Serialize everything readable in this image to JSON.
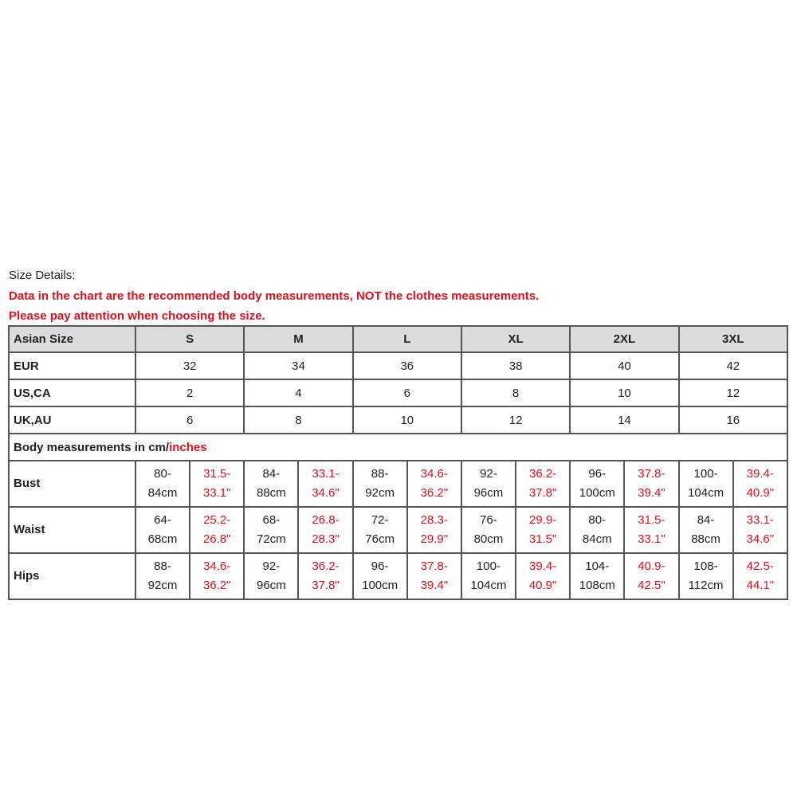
{
  "intro": {
    "title": "Size Details:",
    "warning_1": "Data in the chart are the recommended body measurements, NOT the clothes measurements.",
    "warning_2": "Please pay attention when choosing the size."
  },
  "table": {
    "header_label": "Asian Size",
    "sizes": [
      "S",
      "M",
      "L",
      "XL",
      "2XL",
      "3XL"
    ],
    "conversion_rows": [
      {
        "label": "EUR",
        "values": [
          "32",
          "34",
          "36",
          "38",
          "40",
          "42"
        ]
      },
      {
        "label": "US,CA",
        "values": [
          "2",
          "4",
          "6",
          "8",
          "10",
          "12"
        ]
      },
      {
        "label": "UK,AU",
        "values": [
          "6",
          "8",
          "10",
          "12",
          "14",
          "16"
        ]
      }
    ],
    "section_label_prefix": "Body measurements in cm/",
    "section_label_suffix": "inches",
    "measurement_rows": [
      {
        "label": "Bust",
        "values": [
          {
            "cm_1": "80-",
            "cm_2": "84cm",
            "in_1": "31.5-",
            "in_2": "33.1\""
          },
          {
            "cm_1": "84-",
            "cm_2": "88cm",
            "in_1": "33.1-",
            "in_2": "34.6\""
          },
          {
            "cm_1": "88-",
            "cm_2": "92cm",
            "in_1": "34.6-",
            "in_2": "36.2\""
          },
          {
            "cm_1": "92-",
            "cm_2": "96cm",
            "in_1": "36.2-",
            "in_2": "37.8\""
          },
          {
            "cm_1": "96-",
            "cm_2": "100cm",
            "in_1": "37.8-",
            "in_2": "39.4\""
          },
          {
            "cm_1": "100-",
            "cm_2": "104cm",
            "in_1": "39.4-",
            "in_2": "40.9\""
          }
        ]
      },
      {
        "label": "Waist",
        "values": [
          {
            "cm_1": "64-",
            "cm_2": "68cm",
            "in_1": "25.2-",
            "in_2": "26.8\""
          },
          {
            "cm_1": "68-",
            "cm_2": "72cm",
            "in_1": "26.8-",
            "in_2": "28.3\""
          },
          {
            "cm_1": "72-",
            "cm_2": "76cm",
            "in_1": "28.3-",
            "in_2": "29.9\""
          },
          {
            "cm_1": "76-",
            "cm_2": "80cm",
            "in_1": "29.9-",
            "in_2": "31.5\""
          },
          {
            "cm_1": "80-",
            "cm_2": "84cm",
            "in_1": "31.5-",
            "in_2": "33.1\""
          },
          {
            "cm_1": "84-",
            "cm_2": "88cm",
            "in_1": "33.1-",
            "in_2": "34.6\""
          }
        ]
      },
      {
        "label": "Hips",
        "values": [
          {
            "cm_1": "88-",
            "cm_2": "92cm",
            "in_1": "34.6-",
            "in_2": "36.2\""
          },
          {
            "cm_1": "92-",
            "cm_2": "96cm",
            "in_1": "36.2-",
            "in_2": "37.8\""
          },
          {
            "cm_1": "96-",
            "cm_2": "100cm",
            "in_1": "37.8-",
            "in_2": "39.4\""
          },
          {
            "cm_1": "100-",
            "cm_2": "104cm",
            "in_1": "39.4-",
            "in_2": "40.9\""
          },
          {
            "cm_1": "104-",
            "cm_2": "108cm",
            "in_1": "40.9-",
            "in_2": "42.5\""
          },
          {
            "cm_1": "108-",
            "cm_2": "112cm",
            "in_1": "42.5-",
            "in_2": "44.1\""
          }
        ]
      }
    ]
  },
  "colors": {
    "warning": "#e0101c",
    "header_bg": "#dcdcdc",
    "border": "#555555"
  }
}
